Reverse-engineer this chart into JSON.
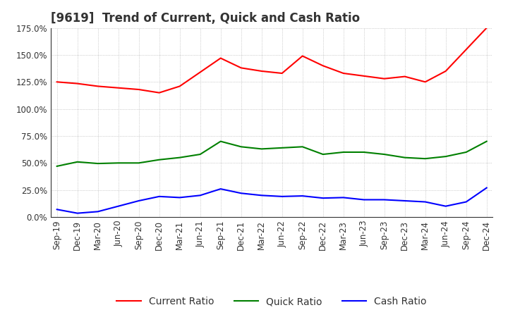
{
  "title": "[9619]  Trend of Current, Quick and Cash Ratio",
  "x_labels": [
    "Sep-19",
    "Dec-19",
    "Mar-20",
    "Jun-20",
    "Sep-20",
    "Dec-20",
    "Mar-21",
    "Jun-21",
    "Sep-21",
    "Dec-21",
    "Mar-22",
    "Jun-22",
    "Sep-22",
    "Dec-22",
    "Mar-23",
    "Jun-23",
    "Sep-23",
    "Dec-23",
    "Mar-24",
    "Jun-24",
    "Sep-24",
    "Dec-24"
  ],
  "current_ratio": [
    125.0,
    123.5,
    121.0,
    119.5,
    118.0,
    115.0,
    121.0,
    134.0,
    147.0,
    138.0,
    135.0,
    133.0,
    149.0,
    140.0,
    133.0,
    130.5,
    128.0,
    130.0,
    125.0,
    135.0,
    155.0,
    175.0
  ],
  "quick_ratio": [
    47.0,
    51.0,
    49.5,
    50.0,
    50.0,
    53.0,
    55.0,
    58.0,
    70.0,
    65.0,
    63.0,
    64.0,
    65.0,
    58.0,
    60.0,
    60.0,
    58.0,
    55.0,
    54.0,
    56.0,
    60.0,
    70.0
  ],
  "cash_ratio": [
    7.0,
    3.5,
    5.0,
    10.0,
    15.0,
    19.0,
    18.0,
    20.0,
    26.0,
    22.0,
    20.0,
    19.0,
    19.5,
    17.5,
    18.0,
    16.0,
    16.0,
    15.0,
    14.0,
    10.0,
    14.0,
    27.0
  ],
  "current_color": "#FF0000",
  "quick_color": "#008000",
  "cash_color": "#0000FF",
  "ylim": [
    0,
    175
  ],
  "yticks": [
    0,
    25,
    50,
    75,
    100,
    125,
    150,
    175
  ],
  "grid_color": "#AAAAAA",
  "bg_color": "#FFFFFF",
  "plot_bg_color": "#FFFFFF",
  "title_fontsize": 12,
  "legend_fontsize": 10,
  "tick_fontsize": 8.5
}
